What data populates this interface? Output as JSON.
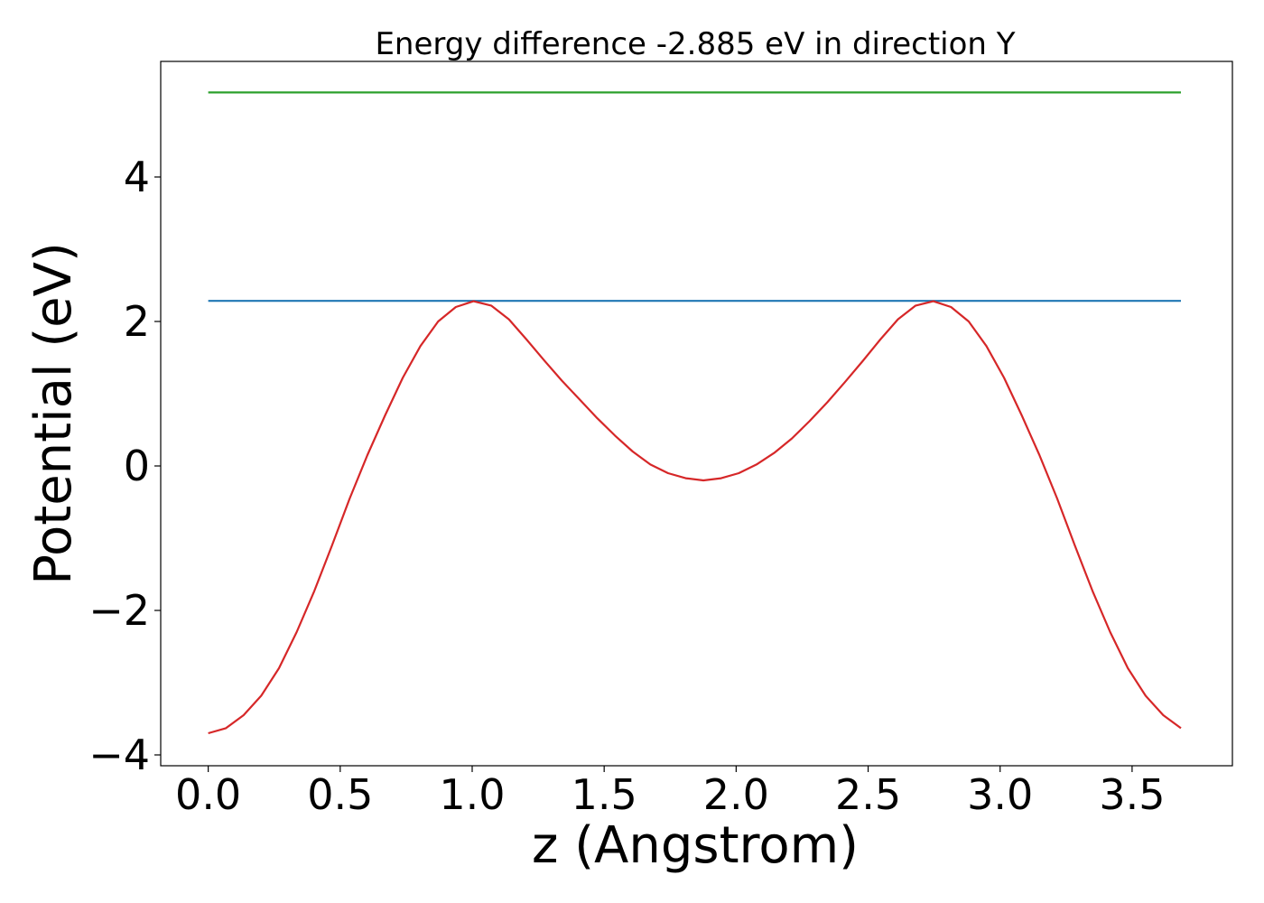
{
  "chart_data": {
    "type": "line",
    "title": "Energy difference -2.885 eV in direction Y",
    "xlabel": "z (Angstrom)",
    "ylabel": "Potential (eV)",
    "xlim": [
      -0.18,
      3.88
    ],
    "ylim": [
      -4.15,
      5.6
    ],
    "x_ticks": [
      0.0,
      0.5,
      1.0,
      1.5,
      2.0,
      2.5,
      3.0,
      3.5
    ],
    "x_tick_labels": [
      "0.0",
      "0.5",
      "1.0",
      "1.5",
      "2.0",
      "2.5",
      "3.0",
      "3.5"
    ],
    "y_ticks": [
      -4,
      -2,
      0,
      2,
      4
    ],
    "y_tick_labels": [
      "−4",
      "−2",
      "0",
      "2",
      "4"
    ],
    "grid": false,
    "series": [
      {
        "color": "#2ca02c",
        "x": [
          0.0,
          3.685
        ],
        "y": [
          5.17,
          5.17
        ]
      },
      {
        "color": "#1f77b4",
        "x": [
          0.0,
          3.685
        ],
        "y": [
          2.285,
          2.285
        ]
      },
      {
        "color": "#d62728",
        "x": [
          0.0,
          0.067,
          0.134,
          0.201,
          0.268,
          0.335,
          0.402,
          0.469,
          0.536,
          0.603,
          0.67,
          0.737,
          0.804,
          0.871,
          0.938,
          1.005,
          1.072,
          1.139,
          1.206,
          1.273,
          1.34,
          1.407,
          1.474,
          1.541,
          1.608,
          1.675,
          1.742,
          1.809,
          1.876,
          1.943,
          2.01,
          2.077,
          2.144,
          2.211,
          2.278,
          2.345,
          2.412,
          2.479,
          2.546,
          2.613,
          2.68,
          2.747,
          2.814,
          2.881,
          2.948,
          3.015,
          3.082,
          3.149,
          3.216,
          3.283,
          3.35,
          3.417,
          3.484,
          3.551,
          3.618,
          3.685
        ],
        "y": [
          -3.7,
          -3.63,
          -3.45,
          -3.18,
          -2.8,
          -2.3,
          -1.73,
          -1.1,
          -0.45,
          0.15,
          0.7,
          1.22,
          1.66,
          2.0,
          2.2,
          2.28,
          2.22,
          2.03,
          1.75,
          1.46,
          1.18,
          0.92,
          0.66,
          0.42,
          0.2,
          0.02,
          -0.1,
          -0.17,
          -0.2,
          -0.17,
          -0.1,
          0.02,
          0.18,
          0.38,
          0.62,
          0.88,
          1.16,
          1.45,
          1.75,
          2.03,
          2.22,
          2.28,
          2.2,
          2.0,
          1.66,
          1.22,
          0.7,
          0.15,
          -0.45,
          -1.1,
          -1.73,
          -2.3,
          -2.8,
          -3.18,
          -3.45,
          -3.63
        ]
      }
    ]
  }
}
